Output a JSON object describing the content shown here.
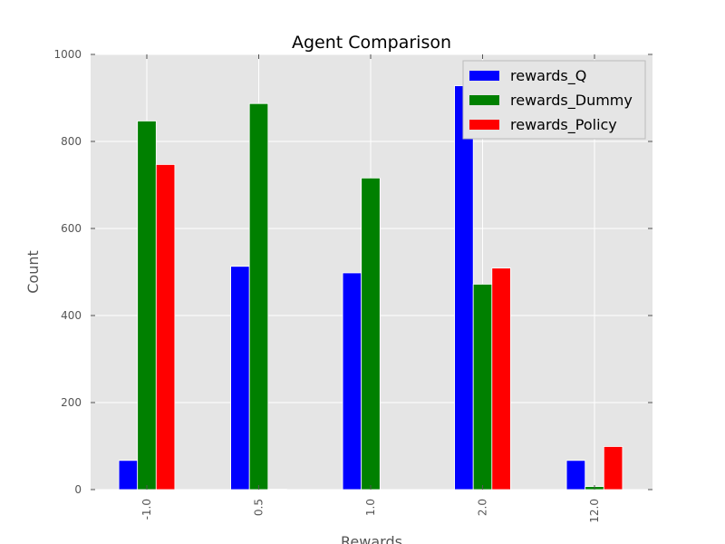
{
  "chart_data": {
    "type": "bar",
    "title": "Agent Comparison",
    "xlabel": "Rewards",
    "ylabel": "Count",
    "categories": [
      "-1.0",
      "0.5",
      "1.0",
      "2.0",
      "12.0"
    ],
    "ylim": [
      0,
      1000
    ],
    "yticks": [
      "0",
      "200",
      "400",
      "600",
      "800",
      "1000"
    ],
    "grid": true,
    "legend_position": "top-right",
    "series": [
      {
        "name": "rewards_Q",
        "color": "#0000ff",
        "values": [
          67,
          513,
          498,
          928,
          67
        ]
      },
      {
        "name": "rewards_Dummy",
        "color": "#008000",
        "values": [
          847,
          887,
          716,
          472,
          7
        ]
      },
      {
        "name": "rewards_Policy",
        "color": "#ff0000",
        "values": [
          747,
          1,
          0,
          509,
          99
        ]
      }
    ],
    "colors": {
      "plot_background": "#e5e5e5",
      "grid": "#ffffff",
      "bar_edge": "#ffffff",
      "axes_edge": "#bcbcbc"
    }
  }
}
